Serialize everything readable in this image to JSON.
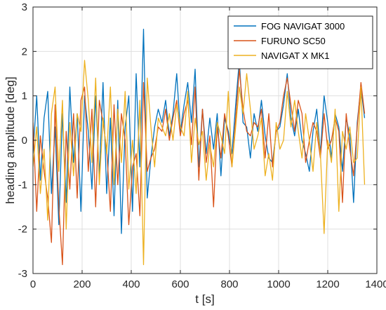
{
  "chart_data": {
    "type": "line",
    "title": "",
    "xlabel": "t [s]",
    "ylabel": "heading amplitude [deg]",
    "xlim": [
      0,
      1400
    ],
    "ylim": [
      -3,
      3
    ],
    "xticks": [
      0,
      200,
      400,
      600,
      800,
      1000,
      1200,
      1400
    ],
    "yticks": [
      -3,
      -2,
      -1,
      0,
      1,
      2,
      3
    ],
    "xtick_labels": [
      "0",
      "200",
      "400",
      "600",
      "800",
      "1000",
      "1200",
      "1400"
    ],
    "ytick_labels": [
      "-3",
      "-2",
      "-1",
      "0",
      "1",
      "2",
      "3"
    ],
    "grid": true,
    "legend_position": "top-right",
    "series": [
      {
        "name": "FOG NAVIGAT 3000",
        "color": "#0072BD",
        "x": [
          0,
          15,
          30,
          45,
          60,
          75,
          90,
          105,
          120,
          135,
          150,
          165,
          180,
          195,
          210,
          225,
          240,
          255,
          270,
          285,
          300,
          315,
          330,
          345,
          360,
          375,
          390,
          405,
          420,
          435,
          450,
          465,
          480,
          495,
          510,
          525,
          540,
          555,
          570,
          585,
          600,
          615,
          630,
          645,
          660,
          675,
          690,
          705,
          720,
          735,
          750,
          765,
          780,
          795,
          810,
          825,
          840,
          855,
          870,
          885,
          900,
          915,
          930,
          945,
          960,
          975,
          990,
          1005,
          1020,
          1035,
          1050,
          1065,
          1080,
          1095,
          1110,
          1125,
          1140,
          1155,
          1170,
          1185,
          1200,
          1215,
          1230,
          1245,
          1260,
          1275,
          1290,
          1305,
          1320,
          1335,
          1350
        ],
        "y": [
          -0.3,
          1.0,
          -0.9,
          0.5,
          1.1,
          -1.2,
          0.3,
          -1.9,
          0.6,
          -1.4,
          1.2,
          -0.5,
          0.6,
          -1.6,
          1.0,
          0.2,
          -1.1,
          1.0,
          -0.8,
          1.3,
          -1.2,
          0.5,
          -1.7,
          0.9,
          -2.1,
          0.3,
          1.0,
          -1.6,
          1.5,
          -0.6,
          2.5,
          -1.3,
          -0.4,
          0.3,
          0.7,
          0.4,
          0.9,
          0.1,
          0.6,
          1.5,
          0.2,
          0.8,
          1.3,
          0.4,
          1.6,
          -0.6,
          0.7,
          -0.3,
          0.5,
          -0.2,
          0.6,
          -0.8,
          0.5,
          0.2,
          -0.3,
          0.8,
          1.8,
          0.4,
          0.3,
          -0.4,
          0.6,
          0.2,
          0.9,
          0.1,
          -0.4,
          -0.5,
          0.2,
          0.3,
          0.8,
          1.5,
          0.5,
          0.1,
          0.7,
          0.0,
          -0.3,
          -0.7,
          0.2,
          0.7,
          -0.3,
          1.0,
          0.4,
          -0.4,
          0.6,
          0.3,
          -0.7,
          0.5,
          0.1,
          -1.4,
          0.4,
          1.2,
          0.5
        ]
      },
      {
        "name": "FURUNO SC50",
        "color": "#D95319",
        "x": [
          0,
          15,
          30,
          45,
          60,
          75,
          90,
          105,
          120,
          135,
          150,
          165,
          180,
          195,
          210,
          225,
          240,
          255,
          270,
          285,
          300,
          315,
          330,
          345,
          360,
          375,
          390,
          405,
          420,
          435,
          450,
          465,
          480,
          495,
          510,
          525,
          540,
          555,
          570,
          585,
          600,
          615,
          630,
          645,
          660,
          675,
          690,
          705,
          720,
          735,
          750,
          765,
          780,
          795,
          810,
          825,
          840,
          855,
          870,
          885,
          900,
          915,
          930,
          945,
          960,
          975,
          990,
          1005,
          1020,
          1035,
          1050,
          1065,
          1080,
          1095,
          1110,
          1125,
          1140,
          1155,
          1170,
          1185,
          1200,
          1215,
          1230,
          1245,
          1260,
          1275,
          1290,
          1305,
          1320,
          1335,
          1350
        ],
        "y": [
          0.4,
          -1.6,
          0.1,
          -0.7,
          -1.3,
          -2.3,
          0.8,
          -1.5,
          -2.8,
          0.2,
          -1.1,
          0.6,
          -1.3,
          0.9,
          1.2,
          -0.7,
          0.7,
          -1.5,
          0.9,
          0.4,
          -0.2,
          -1.6,
          0.8,
          -1.0,
          0.6,
          0.0,
          -1.9,
          -0.6,
          -0.3,
          -1.7,
          1.3,
          -0.7,
          -0.4,
          -0.2,
          0.3,
          0.2,
          0.7,
          0.0,
          0.5,
          0.9,
          0.1,
          0.6,
          0.9,
          -0.1,
          1.2,
          -0.9,
          0.7,
          -0.5,
          0.1,
          -1.5,
          0.3,
          -0.4,
          0.6,
          0.1,
          -0.6,
          0.5,
          1.6,
          0.7,
          0.2,
          0.1,
          0.4,
          0.3,
          0.7,
          -0.4,
          0.6,
          -0.6,
          0.2,
          0.4,
          1.0,
          1.4,
          0.8,
          0.2,
          0.9,
          0.6,
          -0.5,
          0.0,
          0.4,
          0.2,
          -0.4,
          0.6,
          -0.2,
          0.0,
          0.5,
          0.2,
          -1.4,
          0.6,
          -0.2,
          -0.8,
          0.3,
          1.3,
          0.6
        ]
      },
      {
        "name": "NAVIGAT X MK1",
        "color": "#EDB120",
        "x": [
          0,
          15,
          30,
          45,
          60,
          75,
          90,
          105,
          120,
          135,
          150,
          165,
          180,
          195,
          210,
          225,
          240,
          255,
          270,
          285,
          300,
          315,
          330,
          345,
          360,
          375,
          390,
          405,
          420,
          435,
          450,
          465,
          480,
          495,
          510,
          525,
          540,
          555,
          570,
          585,
          600,
          615,
          630,
          645,
          660,
          675,
          690,
          705,
          720,
          735,
          750,
          765,
          780,
          795,
          810,
          825,
          840,
          855,
          870,
          885,
          900,
          915,
          930,
          945,
          960,
          975,
          990,
          1005,
          1020,
          1035,
          1050,
          1065,
          1080,
          1095,
          1110,
          1125,
          1140,
          1155,
          1170,
          1185,
          1200,
          1215,
          1230,
          1245,
          1260,
          1275,
          1290,
          1305,
          1320,
          1335,
          1350
        ],
        "y": [
          -0.6,
          0.3,
          -1.2,
          -0.2,
          -1.8,
          0.6,
          1.2,
          -0.7,
          0.9,
          -2.0,
          0.4,
          -0.8,
          0.6,
          0.2,
          1.8,
          0.9,
          -0.5,
          1.4,
          -1.0,
          0.5,
          -0.3,
          1.2,
          -1.0,
          0.7,
          -0.5,
          1.1,
          -1.1,
          0.0,
          -1.2,
          0.9,
          -2.8,
          1.4,
          0.3,
          -0.6,
          0.5,
          0.3,
          0.1,
          0.6,
          0.0,
          0.8,
          0.3,
          0.1,
          1.1,
          -0.5,
          0.5,
          -0.1,
          0.2,
          -0.9,
          -0.1,
          -0.6,
          0.4,
          0.1,
          -0.3,
          1.1,
          -0.6,
          0.3,
          1.2,
          0.6,
          1.5,
          0.7,
          -0.2,
          0.1,
          0.5,
          -0.8,
          -0.3,
          -0.9,
          0.4,
          -0.2,
          0.0,
          1.1,
          0.3,
          0.9,
          0.2,
          -0.4,
          0.6,
          0.0,
          -0.7,
          0.4,
          -0.3,
          -2.1,
          0.0,
          -0.5,
          0.7,
          -1.6,
          0.2,
          -0.2,
          0.3,
          -0.5,
          -0.4,
          1.2,
          -1.0
        ]
      }
    ]
  }
}
